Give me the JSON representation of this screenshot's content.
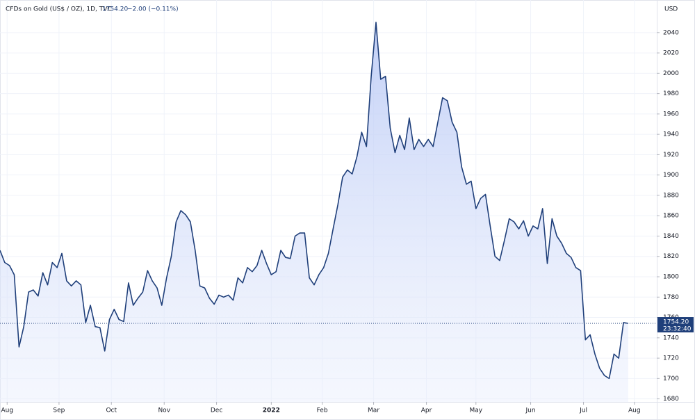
{
  "chart_data": {
    "type": "area",
    "title": "CFDs on Gold (US$ / OZ), 1D, TVC",
    "header_price": "1754.20",
    "header_change": "−2.00 (−0.11%)",
    "currency": "USD",
    "price_tag": "1754.20",
    "countdown": "23:32:40",
    "color": "#1f3f7a",
    "grid": true,
    "values": [
      1826,
      1814,
      1811,
      1802,
      1731,
      1751,
      1785,
      1787,
      1781,
      1804,
      1792,
      1814,
      1809,
      1823,
      1796,
      1791,
      1796,
      1792,
      1755,
      1772,
      1751,
      1750,
      1727,
      1758,
      1768,
      1758,
      1756,
      1794,
      1772,
      1779,
      1785,
      1806,
      1796,
      1789,
      1772,
      1799,
      1820,
      1854,
      1865,
      1861,
      1854,
      1826,
      1791,
      1789,
      1779,
      1773,
      1782,
      1780,
      1782,
      1777,
      1799,
      1794,
      1809,
      1805,
      1811,
      1826,
      1813,
      1802,
      1805,
      1826,
      1819,
      1818,
      1840,
      1843,
      1843,
      1799,
      1792,
      1802,
      1809,
      1823,
      1847,
      1871,
      1898,
      1905,
      1901,
      1918,
      1942,
      1928,
      1997,
      2050,
      1994,
      1997,
      1946,
      1922,
      1939,
      1925,
      1956,
      1925,
      1935,
      1928,
      1935,
      1928,
      1952,
      1976,
      1973,
      1952,
      1942,
      1908,
      1891,
      1894,
      1867,
      1877,
      1881,
      1850,
      1820,
      1816,
      1836,
      1857,
      1854,
      1847,
      1855,
      1840,
      1850,
      1847,
      1867,
      1813,
      1857,
      1840,
      1833,
      1823,
      1819,
      1809,
      1806,
      1738,
      1743,
      1724,
      1710,
      1703,
      1700,
      1724,
      1720,
      1755,
      1754.2
    ],
    "xlim": [
      0,
      138
    ],
    "xticks": [
      {
        "value": 1.5,
        "label": "Aug"
      },
      {
        "value": 12.4,
        "label": "Sep"
      },
      {
        "value": 23.4,
        "label": "Oct"
      },
      {
        "value": 34.5,
        "label": "Nov"
      },
      {
        "value": 45.5,
        "label": "Dec"
      },
      {
        "value": 57,
        "label": "2022"
      },
      {
        "value": 67.7,
        "label": "Feb"
      },
      {
        "value": 78.5,
        "label": "Mar"
      },
      {
        "value": 89.6,
        "label": "Apr"
      },
      {
        "value": 100,
        "label": "May"
      },
      {
        "value": 111.5,
        "label": "Jun"
      },
      {
        "value": 122.6,
        "label": "Jul"
      },
      {
        "value": 133.3,
        "label": "Aug"
      }
    ],
    "ylim": [
      1677,
      2072
    ],
    "yticks": [
      1680,
      1700,
      1720,
      1740,
      1760,
      1780,
      1800,
      1820,
      1840,
      1860,
      1880,
      1900,
      1920,
      1940,
      1960,
      1980,
      2000,
      2020,
      2040
    ]
  }
}
